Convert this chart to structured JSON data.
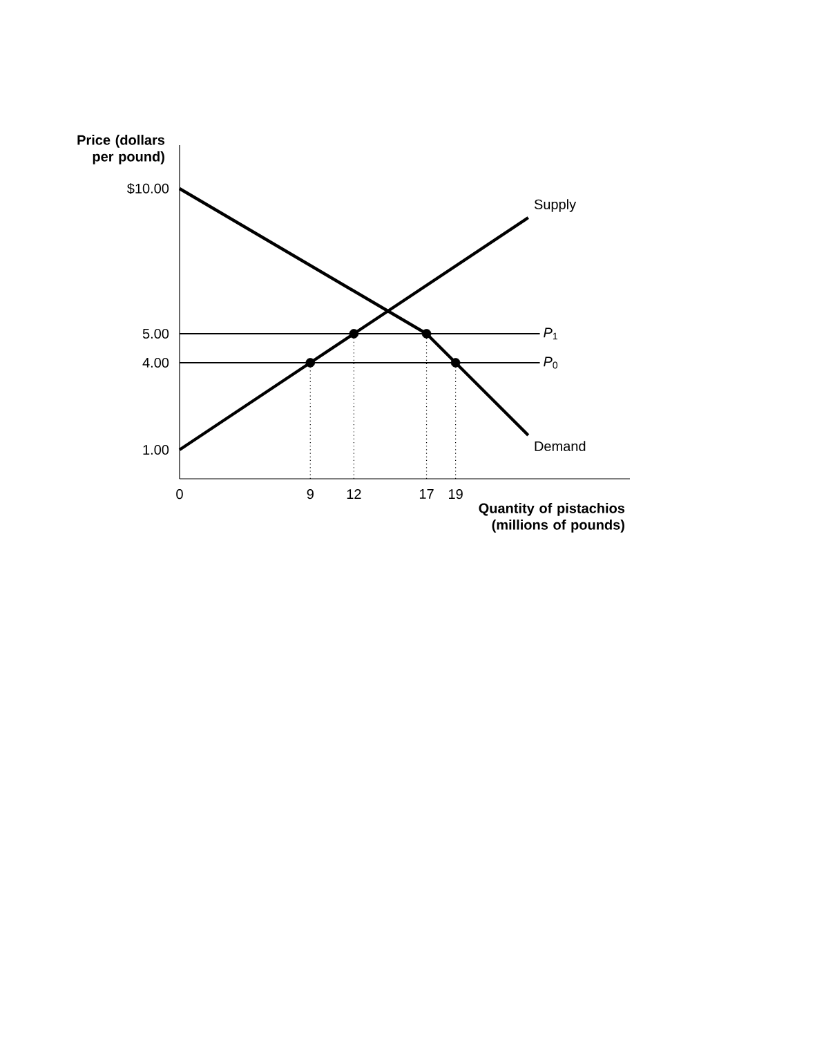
{
  "chart_data": {
    "type": "line",
    "ylabel": "Price (dollars per pound)",
    "xlabel": "Quantity of pistachios (millions of pounds)",
    "xlim": [
      0,
      31
    ],
    "ylim": [
      0,
      11.5
    ],
    "xticks": [
      0,
      9,
      12,
      17,
      19
    ],
    "yticks": [
      {
        "value": 1,
        "label": "1.00"
      },
      {
        "value": 4,
        "label": "4.00"
      },
      {
        "value": 5,
        "label": "5.00"
      },
      {
        "value": 10,
        "label": "$10.00"
      }
    ],
    "series": [
      {
        "name": "Supply",
        "color": "#000000",
        "x": [
          0,
          9,
          12,
          24
        ],
        "values": [
          1,
          4,
          5,
          9
        ]
      },
      {
        "name": "Demand",
        "color": "#000000",
        "x": [
          0,
          17,
          19,
          24
        ],
        "values": [
          10,
          5,
          4,
          1.5
        ]
      },
      {
        "type": "scatter",
        "marker": "circle",
        "color": "#000000",
        "x": [
          9,
          12,
          17,
          19
        ],
        "values": [
          4,
          5,
          5,
          4
        ]
      }
    ],
    "ref_lines": [
      {
        "axis": "y",
        "value": 5,
        "label": "*P*$_{1}$"
      },
      {
        "axis": "y",
        "value": 4,
        "label": "*P*$_{0}$"
      },
      {
        "axis": "x",
        "value": 9,
        "line_style": "dotted"
      },
      {
        "axis": "x",
        "value": 12,
        "line_style": "dotted"
      },
      {
        "axis": "x",
        "value": 17,
        "line_style": "dotted"
      },
      {
        "axis": "x",
        "value": 19,
        "line_style": "dotted"
      }
    ]
  }
}
